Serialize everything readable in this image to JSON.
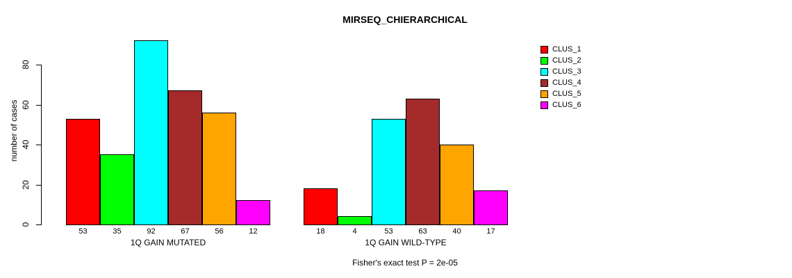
{
  "chart_data": {
    "type": "bar",
    "title": "MIRSEQ_CHIERARCHICAL",
    "ylabel": "number of cases",
    "footnote": "Fisher's exact test P = 2e-05",
    "categories": [
      "CLUS_1",
      "CLUS_2",
      "CLUS_3",
      "CLUS_4",
      "CLUS_5",
      "CLUS_6"
    ],
    "groups": [
      {
        "label": "1Q GAIN MUTATED",
        "values": [
          53,
          35,
          92,
          67,
          56,
          12
        ]
      },
      {
        "label": "1Q GAIN WILD-TYPE",
        "values": [
          18,
          4,
          53,
          63,
          40,
          17
        ]
      }
    ],
    "bar_value_labels_shown": true,
    "yticks": [
      0,
      20,
      40,
      60,
      80
    ],
    "ylim": [
      0,
      92
    ],
    "grid": false,
    "legend": {
      "position": "right",
      "entries": [
        {
          "label": "CLUS_1",
          "color": "#FF0000"
        },
        {
          "label": "CLUS_2",
          "color": "#00FF00"
        },
        {
          "label": "CLUS_3",
          "color": "#00FFFF"
        },
        {
          "label": "CLUS_4",
          "color": "#A52A2A"
        },
        {
          "label": "CLUS_5",
          "color": "#FFA500"
        },
        {
          "label": "CLUS_6",
          "color": "#FF00FF"
        }
      ]
    }
  }
}
